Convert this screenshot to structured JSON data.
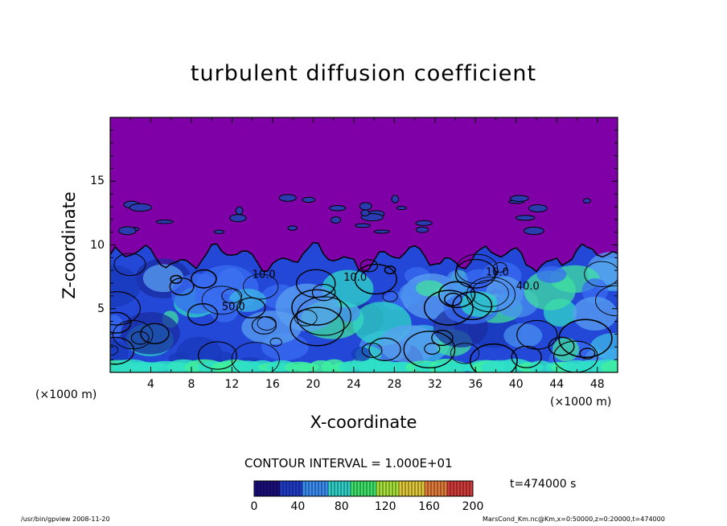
{
  "chart_data": {
    "type": "heatmap",
    "title": "turbulent diffusion coefficient",
    "xlabel": "X-coordinate",
    "ylabel": "Z-coordinate",
    "x_unit_label": "(×1000 m)",
    "x_unit_label_right": "(×1000 m)",
    "xlim": [
      0,
      50
    ],
    "ylim": [
      0,
      20
    ],
    "x_ticks": [
      "4",
      "8",
      "12",
      "16",
      "20",
      "24",
      "28",
      "32",
      "36",
      "40",
      "44",
      "48"
    ],
    "y_ticks": [
      "5",
      "10",
      "15"
    ],
    "contour_interval_text": "CONTOUR INTERVAL = 1.000E+01",
    "contour_labels": [
      "10.0",
      "50.0",
      "10.0",
      "40.0",
      "10.0"
    ],
    "colorbar": {
      "range": [
        0,
        200
      ],
      "ticks": [
        "0",
        "40",
        "80",
        "120",
        "160",
        "200"
      ],
      "colors": [
        "#1a0f7a",
        "#1e3cc8",
        "#3a8cf0",
        "#2fd0c8",
        "#3ee06a",
        "#a8e03a",
        "#e0c83a",
        "#e07a3a",
        "#d03a3a"
      ]
    },
    "background_color": "#8000a8",
    "time_label": "t=474000 s"
  },
  "footer": {
    "left": "/usr/bin/gpview  2008-11-20",
    "right": "MarsCond_Km.nc@Km,x=0:50000,z=0:20000,t=474000"
  }
}
